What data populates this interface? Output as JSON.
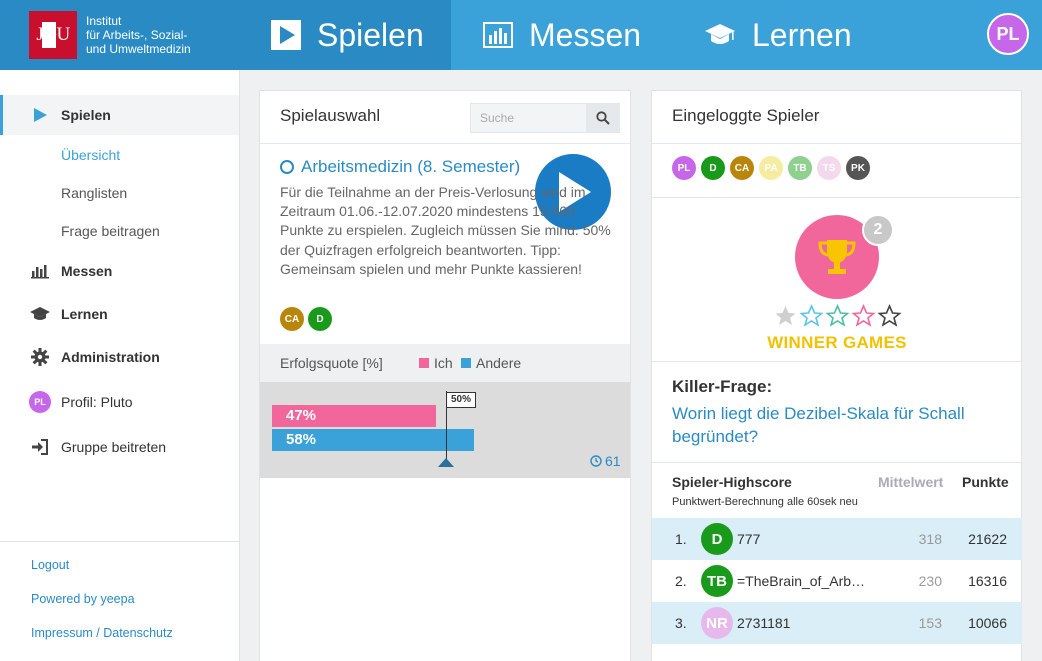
{
  "brand": {
    "logo_text_left": "JG",
    "logo_text_right": "U",
    "line1": "Institut",
    "line2": "für Arbeits-, Sozial-",
    "line3": "und Umweltmedizin"
  },
  "topnav": {
    "items": [
      {
        "label": "Spielen",
        "icon": "play-icon",
        "active": true
      },
      {
        "label": "Messen",
        "icon": "bar-chart-icon",
        "active": false
      },
      {
        "label": "Lernen",
        "icon": "graduation-cap-icon",
        "active": false
      }
    ],
    "user_avatar": {
      "initials": "PL",
      "color": "#c567e8"
    }
  },
  "sidebar": {
    "items": [
      {
        "label": "Spielen",
        "icon": "play-icon"
      },
      {
        "label": "Übersicht"
      },
      {
        "label": "Ranglisten"
      },
      {
        "label": "Frage beitragen"
      },
      {
        "label": "Messen",
        "icon": "bar-chart-icon"
      },
      {
        "label": "Lernen",
        "icon": "graduation-cap-icon"
      },
      {
        "label": "Administration",
        "icon": "gear-icon"
      },
      {
        "label": "Profil: Pluto",
        "avatar": "PL"
      },
      {
        "label": "Gruppe beitreten",
        "icon": "sign-in-icon"
      }
    ],
    "footer": [
      "Logout",
      "Powered by yeepa",
      "Impressum / Datenschutz"
    ]
  },
  "spielauswahl": {
    "title": "Spielauswahl",
    "search_placeholder": "Suche",
    "game": {
      "title": "Arbeitsmedizin (8. Semester)",
      "description": "Für die Teilnahme an der Preis-Verlosung sind im Zeitraum 01.06.-12.07.2020 mindestens 15.000 Punkte zu erspielen. Zugleich müssen Sie mind. 50% der Quizfragen erfolgreich beantworten. Tipp: Gemeinsam spielen und mehr Punkte kassieren!",
      "players": [
        {
          "initials": "CA",
          "color": "#b8860b"
        },
        {
          "initials": "D",
          "color": "#1a9a1a"
        }
      ]
    },
    "stats": {
      "label": "Erfolgsquote [%]",
      "legend_ich": "Ich",
      "legend_andere": "Andere",
      "color_ich": "#f2679b",
      "color_andere": "#3aa2d8",
      "ich_value": 47,
      "ich_label": "47%",
      "andere_value": 58,
      "andere_label": "58%",
      "threshold_value": 50,
      "threshold_label": "50%",
      "timer": "61"
    }
  },
  "eingeloggte": {
    "title": "Eingeloggte Spieler",
    "players": [
      {
        "initials": "PL",
        "color": "#c567e8"
      },
      {
        "initials": "D",
        "color": "#1a9a1a"
      },
      {
        "initials": "CA",
        "color": "#b8860b"
      },
      {
        "initials": "PA",
        "color": "#f5eca0"
      },
      {
        "initials": "TB",
        "color": "#8fd08f"
      },
      {
        "initials": "TS",
        "color": "#f3d9ec"
      },
      {
        "initials": "PK",
        "color": "#555555"
      }
    ],
    "trophy_rank": "2",
    "stars_filled": 1,
    "stars_total": 5,
    "winner_label": "WINNER GAMES",
    "killer_title": "Killer-Frage:",
    "killer_question": "Worin liegt die Dezibel-Skala für Schall begründet?",
    "highscore": {
      "title": "Spieler-Highscore",
      "subtitle": "Punktwert-Berechnung alle 60sek neu",
      "col_mean": "Mittelwert",
      "col_points": "Punkte",
      "rows": [
        {
          "rank": "1.",
          "initials": "D",
          "color": "#1a9a1a",
          "name": "777",
          "mean": "318",
          "points": "21622",
          "highlight": true
        },
        {
          "rank": "2.",
          "initials": "TB",
          "color": "#1a9a1a",
          "name": "=TheBrain_of_Arbeitsmedizin",
          "mean": "230",
          "points": "16316",
          "highlight": false
        },
        {
          "rank": "3.",
          "initials": "NR",
          "color": "#e7b8ec",
          "name": "2731181",
          "mean": "153",
          "points": "10066",
          "highlight": true
        }
      ]
    }
  }
}
